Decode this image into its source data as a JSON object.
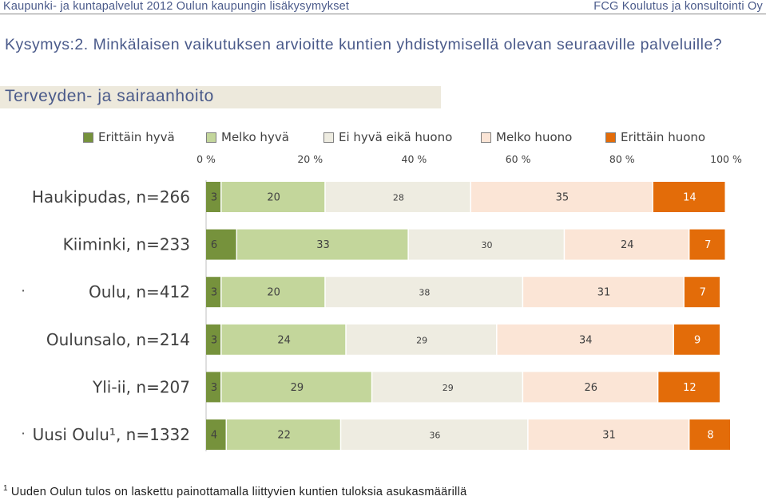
{
  "header": {
    "left": "Kaupunki- ja kuntapalvelut 2012 Oulun kaupungin lisäkysymykset",
    "right": "FCG Koulutus ja konsultointi Oy"
  },
  "question": "Kysymys:2. Minkälaisen vaikutuksen arvioitte kuntien yhdistymisellä olevan seuraaville palveluille?",
  "section_title": "Terveyden- ja sairaanhoito",
  "footnote": {
    "mark": "1",
    "text": "Uuden Oulun tulos on laskettu painottamalla liittyvien kuntien tuloksia asukasmäärillä"
  },
  "colors": {
    "Erittäin hyvä": "#76923c",
    "Melko hyvä": "#c3d69b",
    "Ei hyvä eikä huono": "#eeece1",
    "Melko huono": "#fbe5d6",
    "Erittäin huono": "#e36c09"
  },
  "chart_data": {
    "type": "bar",
    "orientation": "horizontal",
    "stacked": true,
    "percent_stacked": true,
    "categories": [
      "Haukipudas, n=266",
      "Kiiminki, n=233",
      "Oulu, n=412",
      "Oulunsalo, n=214",
      "Yli-ii, n=207",
      "Uusi Oulu¹, n=1332"
    ],
    "row_markers": [
      "",
      "",
      "·",
      "",
      "",
      "·"
    ],
    "series": [
      {
        "name": "Erittäin hyvä",
        "values": [
          3,
          6,
          3,
          3,
          3,
          4
        ]
      },
      {
        "name": "Melko hyvä",
        "values": [
          20,
          33,
          20,
          24,
          29,
          22
        ]
      },
      {
        "name": "Ei hyvä eikä huono",
        "values": [
          28,
          30,
          38,
          29,
          29,
          36
        ]
      },
      {
        "name": "Melko huono",
        "values": [
          35,
          24,
          31,
          34,
          26,
          31
        ]
      },
      {
        "name": "Erittäin huono",
        "values": [
          14,
          7,
          7,
          9,
          12,
          8
        ]
      }
    ],
    "xlim": [
      0,
      100
    ],
    "xticks": [
      "0 %",
      "20 %",
      "40 %",
      "60 %",
      "80 %",
      "100 %"
    ],
    "legend_position": "top",
    "grid": false
  }
}
